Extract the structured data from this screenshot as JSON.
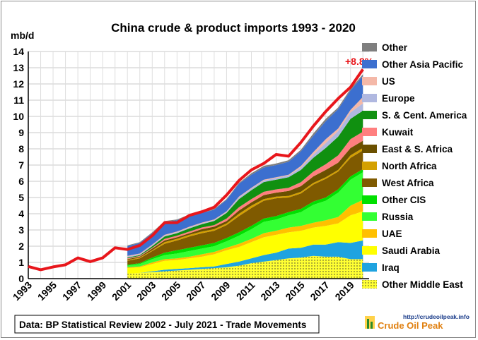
{
  "chart_data": {
    "type": "area",
    "title": "China crude & product imports 1993 - 2020",
    "ylabel": "mb/d",
    "xlabel": "",
    "ylim": [
      0,
      14
    ],
    "yticks": [
      0,
      1,
      2,
      3,
      4,
      5,
      6,
      7,
      8,
      9,
      10,
      11,
      12,
      13,
      14
    ],
    "xtick_labels": [
      "1993",
      "1995",
      "1997",
      "1999",
      "2001",
      "2003",
      "2005",
      "2007",
      "2009",
      "2011",
      "2013",
      "2015",
      "2017",
      "2019"
    ],
    "grid": true,
    "legend_position": "right",
    "annotation": "+8.8%",
    "source_note": "Data: BP Statistical Review 2002 - July 2021 - Trade Movements",
    "logo": {
      "url_text": "http://crudeoilpeak.info",
      "brand": "Crude Oil Peak"
    },
    "total_series": {
      "name": "Total",
      "color": "#e8161b",
      "x": [
        1993,
        1994,
        1995,
        1996,
        1997,
        1998,
        1999,
        2000,
        2001,
        2002,
        2003,
        2004,
        2005,
        2006,
        2007,
        2008,
        2009,
        2010,
        2011,
        2012,
        2013,
        2014,
        2015,
        2016,
        2017,
        2018,
        2019,
        2020
      ],
      "values": [
        0.75,
        0.55,
        0.72,
        0.85,
        1.28,
        1.05,
        1.28,
        1.9,
        1.8,
        2.05,
        2.65,
        3.45,
        3.45,
        3.9,
        4.12,
        4.4,
        5.15,
        6.05,
        6.7,
        7.1,
        7.65,
        7.55,
        8.4,
        9.4,
        10.3,
        11.1,
        11.8,
        12.9
      ]
    },
    "stack_x": [
      2001,
      2002,
      2003,
      2004,
      2005,
      2006,
      2007,
      2008,
      2009,
      2010,
      2011,
      2012,
      2013,
      2014,
      2015,
      2016,
      2017,
      2018,
      2019,
      2020
    ],
    "series": [
      {
        "name": "Other Middle East",
        "color": "#ffff33",
        "pattern": "dots",
        "values": [
          0.3,
          0.35,
          0.4,
          0.45,
          0.5,
          0.55,
          0.6,
          0.65,
          0.7,
          0.8,
          0.95,
          1.05,
          1.15,
          1.25,
          1.3,
          1.4,
          1.35,
          1.35,
          1.2,
          1.2
        ]
      },
      {
        "name": "Iraq",
        "color": "#1fa3e0",
        "values": [
          0.0,
          0.0,
          0.05,
          0.1,
          0.1,
          0.1,
          0.1,
          0.1,
          0.2,
          0.25,
          0.3,
          0.4,
          0.45,
          0.6,
          0.6,
          0.7,
          0.75,
          0.9,
          1.0,
          1.15
        ]
      },
      {
        "name": "Saudi Arabia",
        "color": "#ffff00",
        "values": [
          0.35,
          0.35,
          0.45,
          0.55,
          0.55,
          0.6,
          0.65,
          0.75,
          0.85,
          0.9,
          1.0,
          1.1,
          1.1,
          1.0,
          1.05,
          1.05,
          1.15,
          1.15,
          1.7,
          1.8
        ]
      },
      {
        "name": "UAE",
        "color": "#ffc000",
        "values": [
          0.05,
          0.05,
          0.1,
          0.1,
          0.1,
          0.1,
          0.15,
          0.15,
          0.15,
          0.2,
          0.2,
          0.25,
          0.25,
          0.3,
          0.3,
          0.3,
          0.35,
          0.4,
          0.6,
          0.7
        ]
      },
      {
        "name": "Russia",
        "color": "#33ff33",
        "values": [
          0.1,
          0.15,
          0.2,
          0.25,
          0.3,
          0.35,
          0.35,
          0.35,
          0.4,
          0.5,
          0.6,
          0.7,
          0.7,
          0.75,
          0.85,
          1.1,
          1.2,
          1.5,
          1.6,
          1.7
        ]
      },
      {
        "name": "Other CIS",
        "color": "#00e000",
        "values": [
          0.05,
          0.05,
          0.1,
          0.15,
          0.2,
          0.2,
          0.2,
          0.2,
          0.2,
          0.2,
          0.2,
          0.2,
          0.2,
          0.2,
          0.2,
          0.2,
          0.2,
          0.2,
          0.2,
          0.2
        ]
      },
      {
        "name": "West Africa",
        "color": "#7f5a00",
        "values": [
          0.25,
          0.3,
          0.4,
          0.55,
          0.6,
          0.7,
          0.75,
          0.75,
          0.8,
          1.0,
          1.1,
          1.1,
          1.1,
          0.9,
          0.95,
          1.05,
          1.15,
          1.1,
          1.15,
          1.15
        ]
      },
      {
        "name": "North Africa",
        "color": "#d4a000",
        "values": [
          0.05,
          0.05,
          0.05,
          0.1,
          0.1,
          0.1,
          0.1,
          0.1,
          0.1,
          0.15,
          0.15,
          0.1,
          0.1,
          0.1,
          0.1,
          0.1,
          0.1,
          0.1,
          0.15,
          0.15
        ]
      },
      {
        "name": "East & S. Africa",
        "color": "#6b5000",
        "values": [
          0.05,
          0.05,
          0.1,
          0.1,
          0.1,
          0.1,
          0.15,
          0.15,
          0.15,
          0.2,
          0.2,
          0.25,
          0.25,
          0.3,
          0.35,
          0.4,
          0.45,
          0.45,
          0.45,
          0.45
        ]
      },
      {
        "name": "Kuwait",
        "color": "#ff7f7f",
        "values": [
          0.05,
          0.05,
          0.05,
          0.1,
          0.1,
          0.1,
          0.1,
          0.1,
          0.15,
          0.2,
          0.2,
          0.2,
          0.2,
          0.2,
          0.25,
          0.3,
          0.35,
          0.45,
          0.55,
          0.55
        ]
      },
      {
        "name": "S. & Cent. America",
        "color": "#109010",
        "values": [
          0.05,
          0.05,
          0.1,
          0.15,
          0.15,
          0.2,
          0.2,
          0.25,
          0.35,
          0.5,
          0.55,
          0.6,
          0.6,
          0.65,
          0.75,
          0.85,
          1.0,
          1.15,
          1.25,
          1.3
        ]
      },
      {
        "name": "Europe",
        "color": "#b0b8e0",
        "values": [
          0.05,
          0.05,
          0.05,
          0.05,
          0.05,
          0.05,
          0.05,
          0.05,
          0.05,
          0.1,
          0.1,
          0.1,
          0.1,
          0.1,
          0.15,
          0.2,
          0.3,
          0.35,
          0.4,
          0.45
        ]
      },
      {
        "name": "US",
        "color": "#f4b8a8",
        "values": [
          0.05,
          0.05,
          0.05,
          0.05,
          0.05,
          0.05,
          0.05,
          0.05,
          0.05,
          0.05,
          0.05,
          0.05,
          0.05,
          0.05,
          0.1,
          0.15,
          0.25,
          0.15,
          0.15,
          0.4
        ]
      },
      {
        "name": "Other Asia Pacific",
        "color": "#3c6fcf",
        "values": [
          0.6,
          0.65,
          0.7,
          0.8,
          0.7,
          0.7,
          0.6,
          0.6,
          0.7,
          0.8,
          0.8,
          0.75,
          0.75,
          0.8,
          0.9,
          1.0,
          1.1,
          1.2,
          1.2,
          1.3
        ]
      },
      {
        "name": "Other",
        "color": "#7f7f7f",
        "values": [
          0.05,
          0.05,
          0.05,
          0.05,
          0.05,
          0.05,
          0.05,
          0.05,
          0.05,
          0.05,
          0.1,
          0.1,
          0.1,
          0.1,
          0.1,
          0.15,
          0.15,
          0.1,
          0.1,
          0.1
        ]
      }
    ]
  }
}
